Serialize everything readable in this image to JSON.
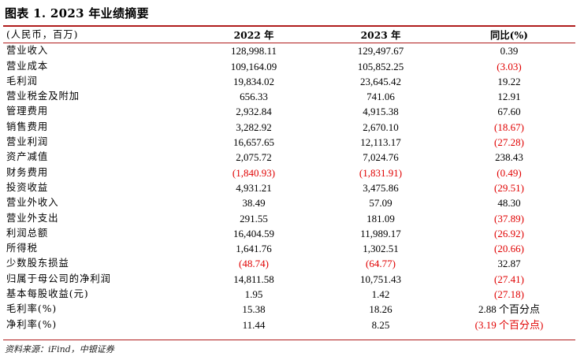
{
  "title": "图表 1. 2023 年业绩摘要",
  "header": [
    "(人民币，百万)",
    "2022 年",
    "2023 年",
    "同比(%)"
  ],
  "rows": [
    {
      "label": "营业收入",
      "y2022": "128,998.11",
      "y2023": "129,497.67",
      "yoy": "0.39",
      "neg": [
        false,
        false,
        false
      ]
    },
    {
      "label": "营业成本",
      "y2022": "109,164.09",
      "y2023": "105,852.25",
      "yoy": "(3.03)",
      "neg": [
        false,
        false,
        true
      ]
    },
    {
      "label": "毛利润",
      "y2022": "19,834.02",
      "y2023": "23,645.42",
      "yoy": "19.22",
      "neg": [
        false,
        false,
        false
      ]
    },
    {
      "label": "营业税金及附加",
      "y2022": "656.33",
      "y2023": "741.06",
      "yoy": "12.91",
      "neg": [
        false,
        false,
        false
      ]
    },
    {
      "label": "管理费用",
      "y2022": "2,932.84",
      "y2023": "4,915.38",
      "yoy": "67.60",
      "neg": [
        false,
        false,
        false
      ]
    },
    {
      "label": "销售费用",
      "y2022": "3,282.92",
      "y2023": "2,670.10",
      "yoy": "(18.67)",
      "neg": [
        false,
        false,
        true
      ]
    },
    {
      "label": "营业利润",
      "y2022": "16,657.65",
      "y2023": "12,113.17",
      "yoy": "(27.28)",
      "neg": [
        false,
        false,
        true
      ]
    },
    {
      "label": "资产减值",
      "y2022": "2,075.72",
      "y2023": "7,024.76",
      "yoy": "238.43",
      "neg": [
        false,
        false,
        false
      ]
    },
    {
      "label": "财务费用",
      "y2022": "(1,840.93)",
      "y2023": "(1,831.91)",
      "yoy": "(0.49)",
      "neg": [
        true,
        true,
        true
      ]
    },
    {
      "label": "投资收益",
      "y2022": "4,931.21",
      "y2023": "3,475.86",
      "yoy": "(29.51)",
      "neg": [
        false,
        false,
        true
      ]
    },
    {
      "label": "营业外收入",
      "y2022": "38.49",
      "y2023": "57.09",
      "yoy": "48.30",
      "neg": [
        false,
        false,
        false
      ]
    },
    {
      "label": "营业外支出",
      "y2022": "291.55",
      "y2023": "181.09",
      "yoy": "(37.89)",
      "neg": [
        false,
        false,
        true
      ]
    },
    {
      "label": "利润总额",
      "y2022": "16,404.59",
      "y2023": "11,989.17",
      "yoy": "(26.92)",
      "neg": [
        false,
        false,
        true
      ]
    },
    {
      "label": "所得税",
      "y2022": "1,641.76",
      "y2023": "1,302.51",
      "yoy": "(20.66)",
      "neg": [
        false,
        false,
        true
      ]
    },
    {
      "label": "少数股东损益",
      "y2022": "(48.74)",
      "y2023": "(64.77)",
      "yoy": "32.87",
      "neg": [
        true,
        true,
        false
      ]
    },
    {
      "label": "归属于母公司的净利润",
      "y2022": "14,811.58",
      "y2023": "10,751.43",
      "yoy": "(27.41)",
      "neg": [
        false,
        false,
        true
      ]
    },
    {
      "label": "基本每股收益(元)",
      "y2022": "1.95",
      "y2023": "1.42",
      "yoy": "(27.18)",
      "neg": [
        false,
        false,
        true
      ]
    },
    {
      "label": "毛利率(%)",
      "y2022": "15.38",
      "y2023": "18.26",
      "yoy": "2.88 个百分点",
      "neg": [
        false,
        false,
        false
      ]
    },
    {
      "label": "净利率(%)",
      "y2022": "11.44",
      "y2023": "8.25",
      "yoy": "(3.19 个百分点)",
      "neg": [
        false,
        false,
        true
      ]
    }
  ],
  "source": "资料来源：iFind，中银证券",
  "colors": {
    "accent_rule": "#b01c1c",
    "negative": "#e00000"
  }
}
